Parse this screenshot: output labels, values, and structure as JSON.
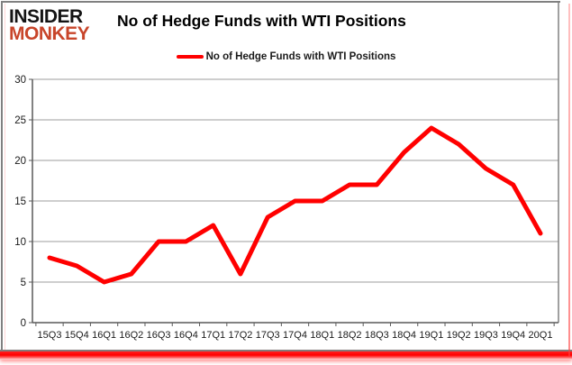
{
  "brand": {
    "line1": "INSIDER",
    "line2": "MONKEY",
    "accent_color": "#C8452A",
    "text_color": "#141414"
  },
  "header": {
    "title": "No of Hedge Funds with WTI Positions"
  },
  "legend": {
    "label": "No of Hedge Funds with WTI Positions",
    "swatch_color": "#FF0000"
  },
  "chart_data": {
    "type": "line",
    "title": "No of Hedge Funds with WTI Positions",
    "xlabel": "",
    "ylabel": "",
    "categories": [
      "15Q3",
      "15Q4",
      "16Q1",
      "16Q2",
      "16Q3",
      "16Q4",
      "17Q1",
      "17Q2",
      "17Q3",
      "17Q4",
      "18Q1",
      "18Q2",
      "18Q3",
      "18Q4",
      "19Q1",
      "19Q2",
      "19Q3",
      "19Q4",
      "20Q1"
    ],
    "series": [
      {
        "name": "No of Hedge Funds with WTI Positions",
        "color": "#FF0000",
        "values": [
          8,
          7,
          5,
          6,
          10,
          10,
          12,
          6,
          13,
          15,
          15,
          17,
          17,
          21,
          24,
          22,
          19,
          17,
          11
        ]
      }
    ],
    "ylim": [
      0,
      30
    ],
    "yticks": [
      0,
      5,
      10,
      15,
      20,
      25,
      30
    ],
    "grid": true,
    "legend_position": "top"
  },
  "style": {
    "gridline_color": "#9E9E9E",
    "axis_color": "#595959",
    "tick_label_color": "#1A1A1A",
    "frame_gray": "#808080",
    "frame_red": "#FF0000"
  }
}
